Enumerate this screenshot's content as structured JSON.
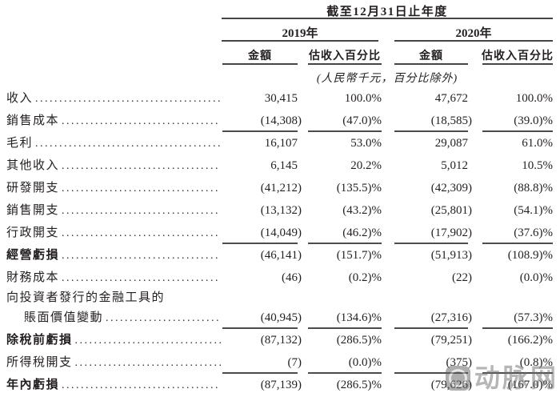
{
  "header": {
    "period_title": "截至12月31日止年度",
    "years": [
      "2019年",
      "2020年"
    ],
    "col_headers": [
      "金額",
      "估收入百分比",
      "金額",
      "估收入百分比"
    ],
    "unit_note": "(人民幣千元，百分比除外)"
  },
  "rows": [
    {
      "label": "收入",
      "bold": false,
      "values": [
        "30,415",
        "100.0%",
        "47,672",
        "100.0%"
      ]
    },
    {
      "label": "銷售成本",
      "bold": false,
      "underline": true,
      "values": [
        "(14,308)",
        "(47.0)%",
        "(18,585)",
        "(39.0)%"
      ]
    },
    {
      "label": "毛利",
      "bold": false,
      "values": [
        "16,107",
        "53.0%",
        "29,087",
        "61.0%"
      ]
    },
    {
      "label": "其他收入",
      "bold": false,
      "values": [
        "6,145",
        "20.2%",
        "5,012",
        "10.5%"
      ]
    },
    {
      "label": "研發開支",
      "bold": false,
      "values": [
        "(41,212)",
        "(135.5)%",
        "(42,309)",
        "(88.8)%"
      ]
    },
    {
      "label": "銷售開支",
      "bold": false,
      "values": [
        "(13,132)",
        "(43.2)%",
        "(25,801)",
        "(54.1)%"
      ]
    },
    {
      "label": "行政開支",
      "bold": false,
      "underline": true,
      "values": [
        "(14,049)",
        "(46.2)%",
        "(17,902)",
        "(37.6)%"
      ]
    },
    {
      "label": "經營虧損",
      "bold": true,
      "values": [
        "(46,141)",
        "(151.7)%",
        "(51,913)",
        "(108.9)%"
      ]
    },
    {
      "label": "財務成本",
      "bold": false,
      "values": [
        "(46)",
        "(0.2)%",
        "(22)",
        "(0.0)%"
      ]
    },
    {
      "label": "向投資者發行的金融工具的",
      "bold": false,
      "intro": true,
      "values": null
    },
    {
      "label": "賬面價值變動",
      "bold": false,
      "indent": true,
      "underline": true,
      "values": [
        "(40,945)",
        "(134.6)%",
        "(27,316)",
        "(57.3)%"
      ]
    },
    {
      "label": "除稅前虧損",
      "bold": true,
      "values": [
        "(87,132)",
        "(286.5)%",
        "(79,251)",
        "(166.2)%"
      ]
    },
    {
      "label": "所得稅開支",
      "bold": false,
      "underline": true,
      "values": [
        "(7)",
        "(0.0)%",
        "(375)",
        "(0.8)%"
      ]
    },
    {
      "label": "年內虧損",
      "bold": true,
      "double_underline": true,
      "values": [
        "(87,139)",
        "(286.5)%",
        "(79,626)",
        "(167.0)%"
      ]
    }
  ],
  "watermark": {
    "text": "动脉网"
  }
}
